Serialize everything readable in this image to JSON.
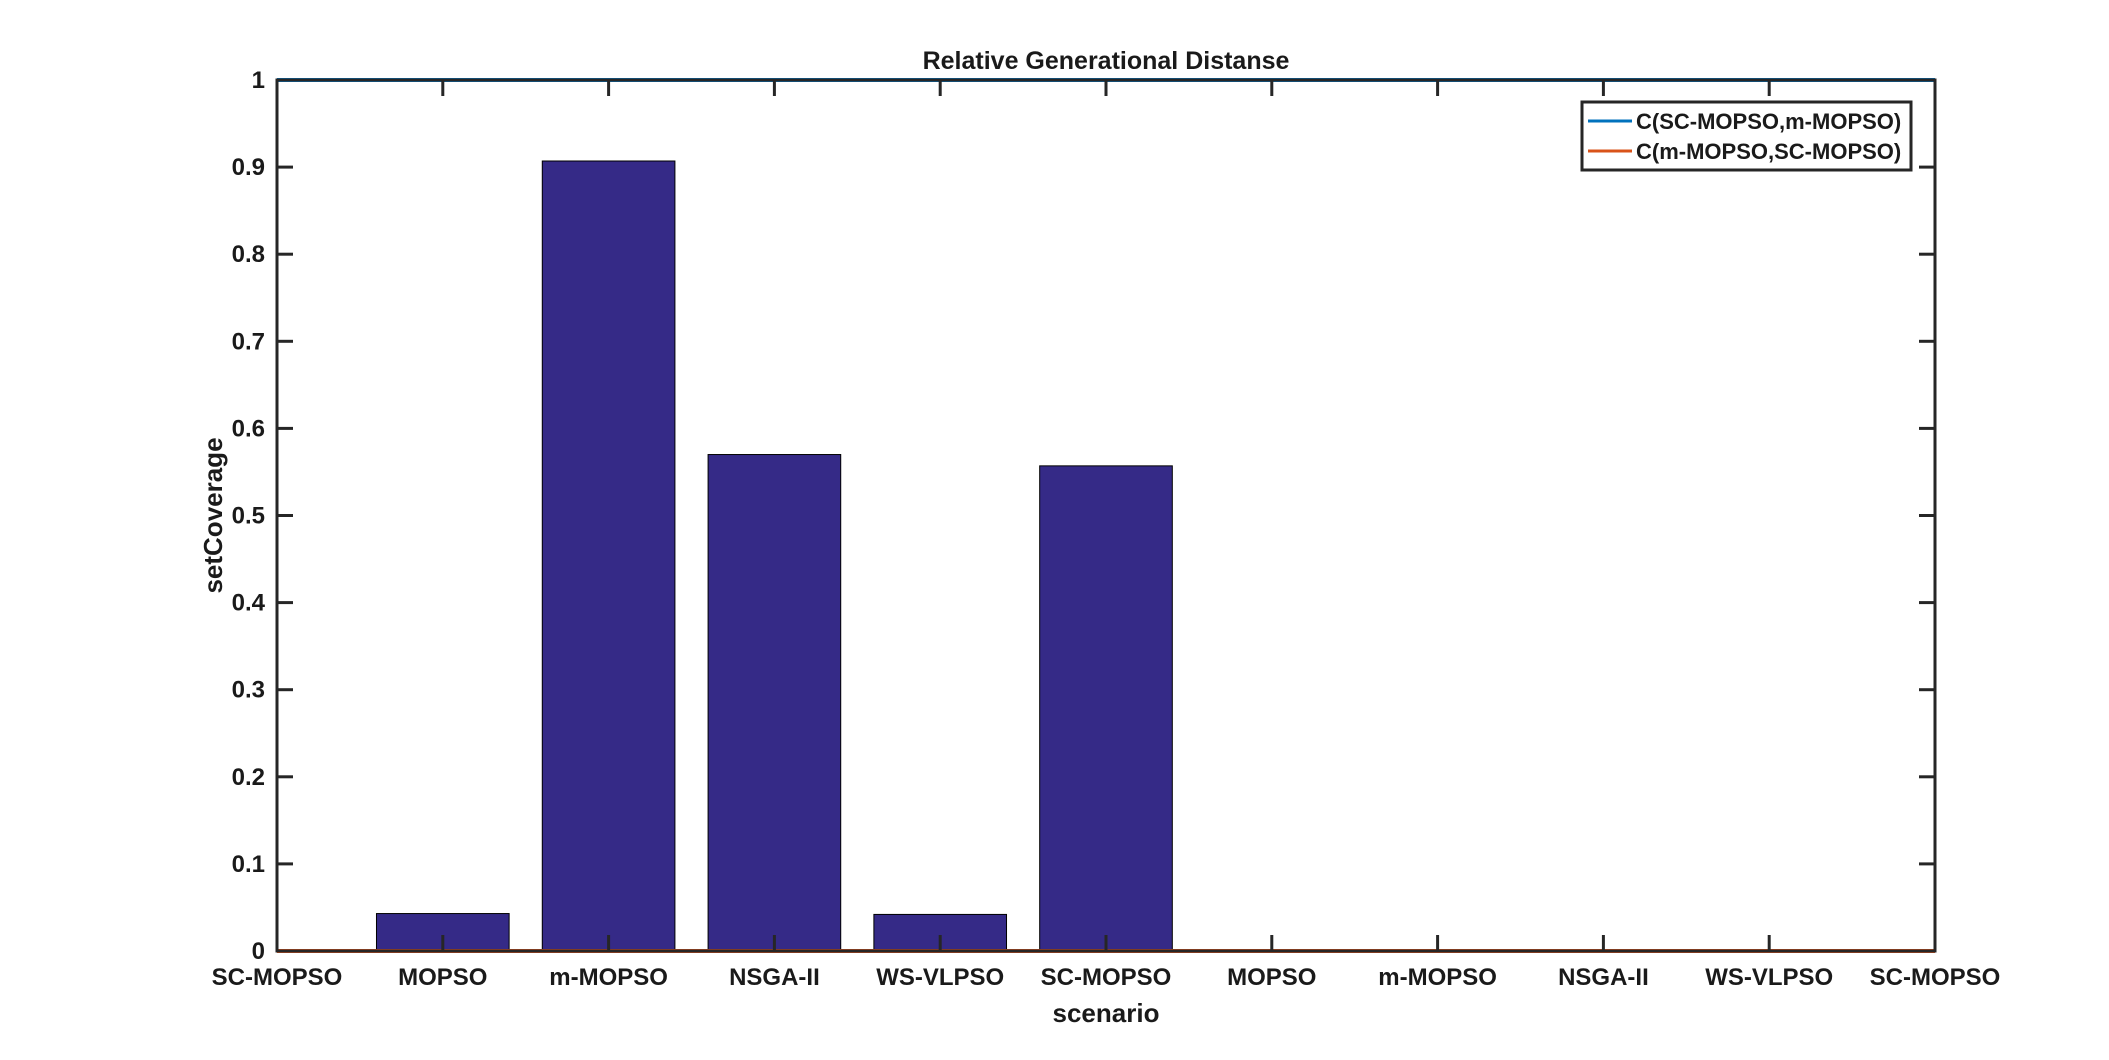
{
  "chart_data": {
    "type": "bar",
    "title": "Relative Generational Distanse",
    "xlabel": "scenario",
    "ylabel": "setCoverage",
    "categories": [
      "SC-MOPSO",
      "MOPSO",
      "m-MOPSO",
      "NSGA-II",
      "WS-VLPSO",
      "SC-MOPSO",
      "MOPSO",
      "m-MOPSO",
      "NSGA-II",
      "WS-VLPSO",
      "SC-MOPSO"
    ],
    "bar_values": [
      0,
      0.043,
      0.907,
      0.57,
      0.042,
      0.557,
      0,
      0,
      0,
      0,
      0
    ],
    "ylim": [
      0,
      1
    ],
    "yticks": [
      0,
      0.1,
      0.2,
      0.3,
      0.4,
      0.5,
      0.6,
      0.7,
      0.8,
      0.9,
      1
    ],
    "ytick_labels": [
      "0",
      "0.1",
      "0.2",
      "0.3",
      "0.4",
      "0.5",
      "0.6",
      "0.7",
      "0.8",
      "0.9",
      "1"
    ],
    "series": [
      {
        "name": "C(SC-MOPSO,m-MOPSO)",
        "values": [
          1,
          1,
          1,
          1,
          1,
          1,
          1,
          1,
          1,
          1,
          1
        ],
        "color": "#0072BD"
      },
      {
        "name": "C(m-MOPSO,SC-MOPSO)",
        "values": [
          0,
          0,
          0,
          0,
          0,
          0,
          0,
          0,
          0,
          0,
          0
        ],
        "color": "#D95319"
      }
    ],
    "bar_color": "#352A87",
    "legend_position": "top-right",
    "grid": false
  }
}
